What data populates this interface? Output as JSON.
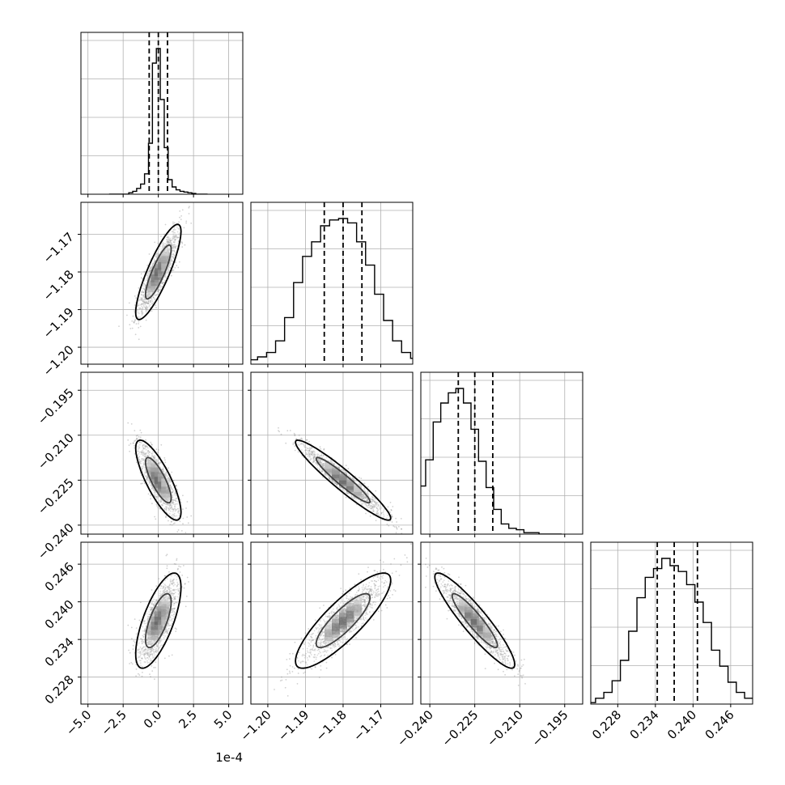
{
  "chart_data": {
    "type": "corner",
    "title": "",
    "scale_offset_text": "1e-4",
    "grid": true,
    "parameters": [
      {
        "key": "p0",
        "range": [
          -5.5,
          6.0
        ],
        "ticks": [
          -5.0,
          -2.5,
          0.0,
          2.5,
          5.0
        ],
        "tick_labels": [
          "−5.0",
          "−2.5",
          "0.0",
          "2.5",
          "5.0"
        ],
        "median": 0.0,
        "q16": -0.65,
        "q84": 0.65,
        "spread": 0.7
      },
      {
        "key": "p1",
        "range": [
          -1.2045,
          -1.1615
        ],
        "ticks": [
          -1.2,
          -1.19,
          -1.18,
          -1.17
        ],
        "tick_labels": [
          "−1.20",
          "−1.19",
          "−1.18",
          "−1.17"
        ],
        "median": -1.18,
        "q16": -1.185,
        "q84": -1.175,
        "spread": 0.0055
      },
      {
        "key": "p2",
        "range": [
          -0.243,
          -0.189
        ],
        "ticks": [
          -0.24,
          -0.225,
          -0.21,
          -0.195
        ],
        "tick_labels": [
          "−0.240",
          "−0.225",
          "−0.210",
          "−0.195"
        ],
        "median": -0.225,
        "q16": -0.2305,
        "q84": -0.219,
        "spread": 0.0058
      },
      {
        "key": "p3",
        "range": [
          0.2237,
          0.2495
        ],
        "ticks": [
          0.228,
          0.234,
          0.24,
          0.246
        ],
        "tick_labels": [
          "0.228",
          "0.234",
          "0.240",
          "0.246"
        ],
        "median": 0.237,
        "q16": 0.2343,
        "q84": 0.2407,
        "spread": 0.0033
      }
    ],
    "correlations": [
      [
        1.0,
        0.85,
        -0.8,
        0.7
      ],
      [
        0.85,
        1.0,
        -0.95,
        0.85
      ],
      [
        -0.8,
        -0.95,
        1.0,
        -0.92
      ],
      [
        0.7,
        0.85,
        -0.92,
        1.0
      ]
    ],
    "histograms": {
      "p0": [
        0,
        0,
        0,
        0,
        0,
        0.01,
        0.02,
        0.04,
        0.07,
        0.14,
        0.35,
        0.9,
        1.0,
        0.65,
        0.32,
        0.1,
        0.05,
        0.03,
        0.02,
        0.015,
        0.01,
        0.005,
        0,
        0,
        0
      ],
      "p1": [
        0.0,
        0.03,
        0.05,
        0.08,
        0.16,
        0.32,
        0.56,
        0.74,
        0.84,
        0.95,
        0.99,
        1.0,
        0.97,
        0.84,
        0.68,
        0.48,
        0.3,
        0.16,
        0.08,
        0.04,
        0.02,
        0.02,
        0.01
      ],
      "p2": [
        0.0,
        0.02,
        0.07,
        0.18,
        0.33,
        0.51,
        0.77,
        0.9,
        0.97,
        1.0,
        0.9,
        0.72,
        0.5,
        0.32,
        0.17,
        0.07,
        0.04,
        0.03,
        0.01,
        0.01,
        0.0,
        0.0,
        0.0
      ],
      "p3": [
        0.0,
        0.0,
        0.01,
        0.04,
        0.08,
        0.16,
        0.3,
        0.5,
        0.73,
        0.87,
        0.93,
        1.0,
        0.95,
        0.91,
        0.82,
        0.7,
        0.56,
        0.37,
        0.26,
        0.15,
        0.08,
        0.04,
        0.02,
        0.01,
        0.0
      ]
    }
  }
}
